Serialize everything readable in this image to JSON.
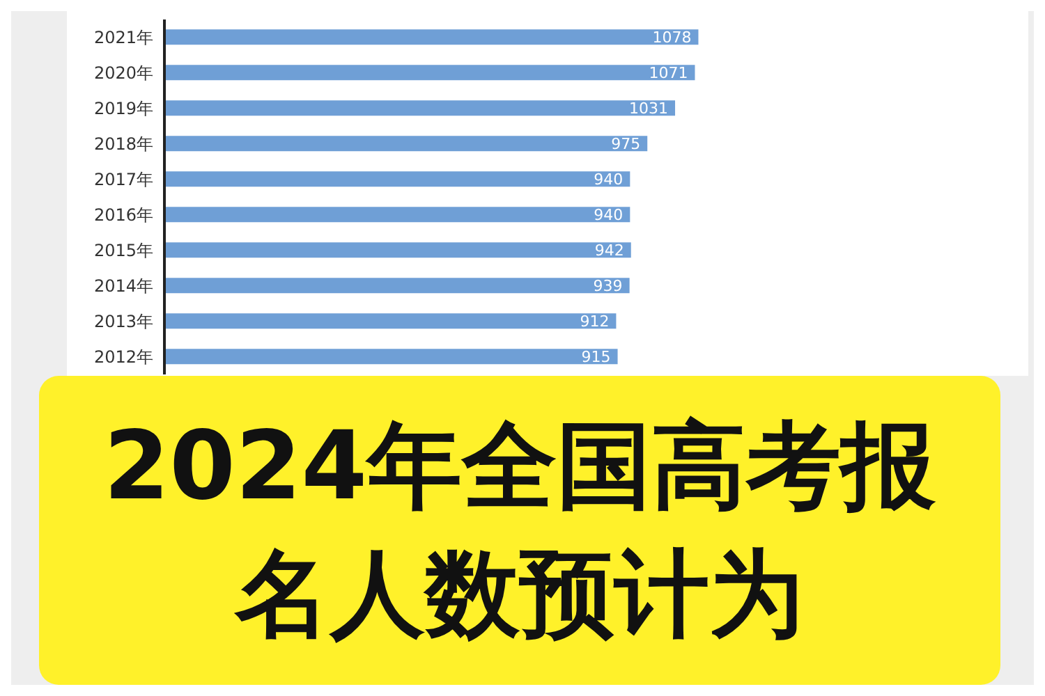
{
  "chart_data": {
    "type": "bar",
    "orientation": "horizontal",
    "title": "2024年全国高考报名人数预计为",
    "categories": [
      "2021年",
      "2020年",
      "2019年",
      "2018年",
      "2017年",
      "2016年",
      "2015年",
      "2014年",
      "2013年",
      "2012年"
    ],
    "values": [
      1078,
      1071,
      1031,
      975,
      940,
      940,
      942,
      939,
      912,
      915
    ],
    "color": "#6f9fd6",
    "data_labels": true,
    "tick_labels": "y"
  }
}
